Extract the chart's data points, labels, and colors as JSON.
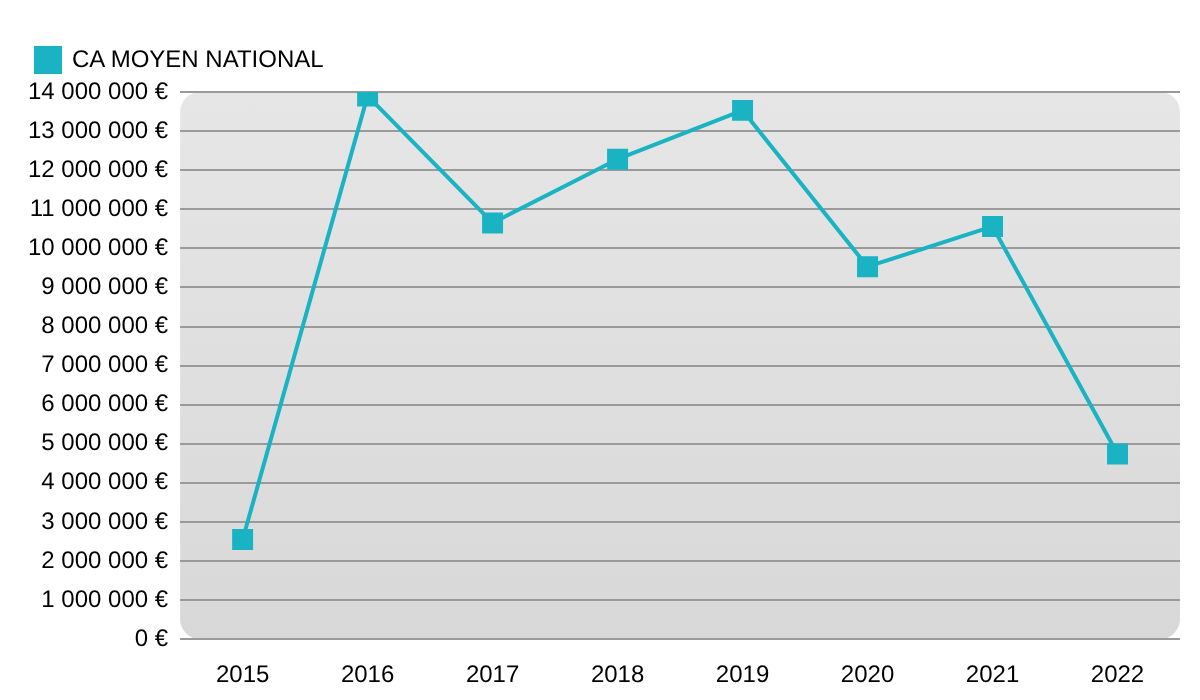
{
  "chart_data": {
    "type": "line",
    "categories": [
      "2015",
      "2016",
      "2017",
      "2018",
      "2019",
      "2020",
      "2021",
      "2022"
    ],
    "series": [
      {
        "name": "CA MOYEN NATIONAL",
        "color": "#1ab3c3",
        "values": [
          2550000,
          13900000,
          10650000,
          12280000,
          13530000,
          9530000,
          10560000,
          4740000
        ]
      }
    ],
    "ylim": [
      0,
      14000000
    ],
    "yticks": [
      {
        "value": 0,
        "label": "0 €"
      },
      {
        "value": 1000000,
        "label": "1 000 000 €"
      },
      {
        "value": 2000000,
        "label": "2 000 000 €"
      },
      {
        "value": 3000000,
        "label": "3 000 000 €"
      },
      {
        "value": 4000000,
        "label": "4 000 000 €"
      },
      {
        "value": 5000000,
        "label": "5 000 000 €"
      },
      {
        "value": 6000000,
        "label": "6 000 000 €"
      },
      {
        "value": 7000000,
        "label": "7 000 000 €"
      },
      {
        "value": 8000000,
        "label": "8 000 000 €"
      },
      {
        "value": 9000000,
        "label": "9 000 000 €"
      },
      {
        "value": 10000000,
        "label": "10 000 000 €"
      },
      {
        "value": 11000000,
        "label": "11 000 000 €"
      },
      {
        "value": 12000000,
        "label": "12 000 000 €"
      },
      {
        "value": 13000000,
        "label": "13 000 000 €"
      },
      {
        "value": 14000000,
        "label": "14 000 000 €"
      }
    ],
    "grid": "y",
    "legend": "top left",
    "marker": "square",
    "line_style": "solid"
  }
}
